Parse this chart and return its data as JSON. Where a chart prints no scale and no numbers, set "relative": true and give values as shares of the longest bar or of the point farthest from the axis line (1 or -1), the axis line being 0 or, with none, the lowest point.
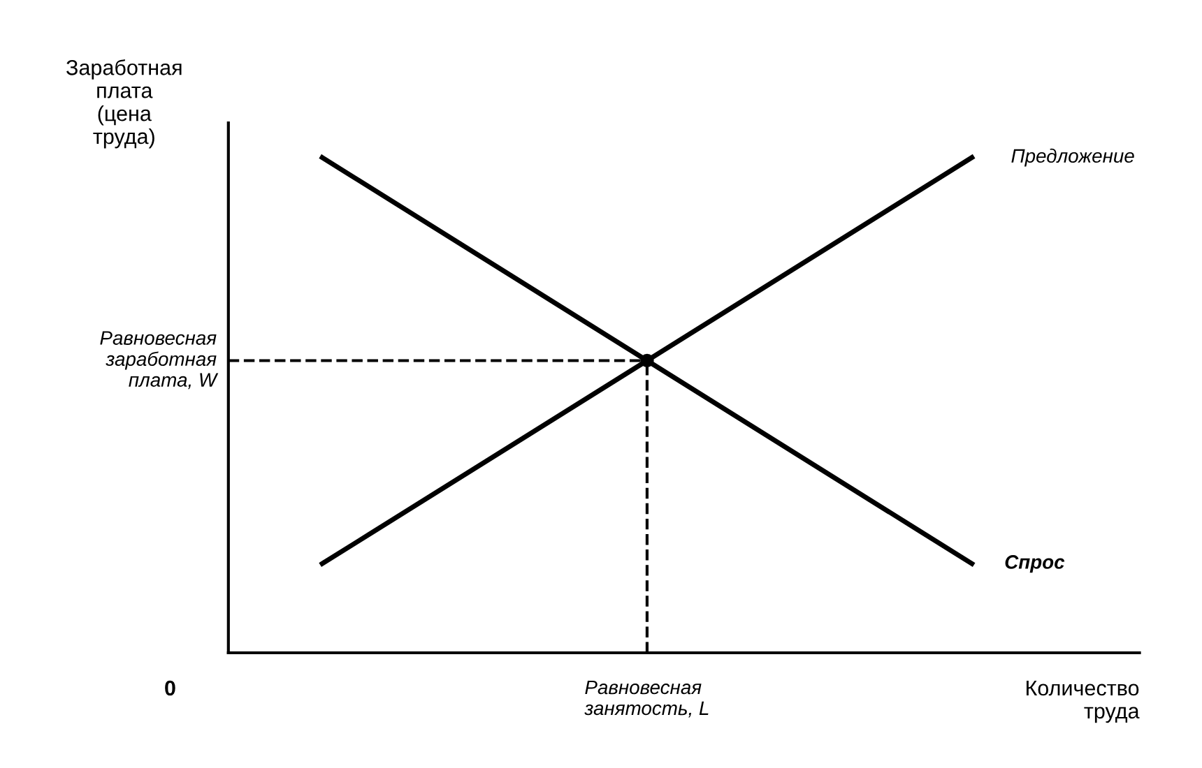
{
  "chart_data": {
    "type": "line",
    "relative": true,
    "ylabel": "Заработная\nплата\n(цена\nтруда)",
    "xlabel": "Количество\nтруда",
    "categories": [
      null,
      null,
      null
    ],
    "series": [
      {
        "name": "Предложение",
        "color": "#000000",
        "values": [
          0.18,
          0.59,
          1
        ]
      },
      {
        "name": "Спрос",
        "color": "#000000",
        "values": [
          1,
          0.59,
          0.18
        ]
      }
    ],
    "ref_lines": [
      {
        "axis": "y",
        "value": 0.59,
        "label": "Равновесная\nзаработная\nплата, W",
        "line_style": "dashed",
        "color": "#000000"
      }
    ],
    "annotations": [
      "0",
      "Равновесная\nзанятость, L"
    ],
    "marker": "none",
    "line_style": "solid"
  }
}
